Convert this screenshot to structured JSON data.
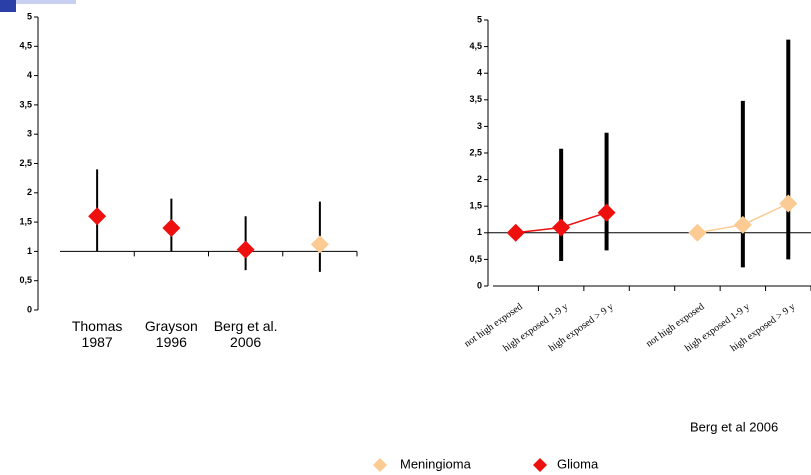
{
  "chart_data": [
    {
      "type": "errorbar",
      "categories": [
        "Thomas\n1987",
        "Grayson\n1996",
        "Berg et al.\n2006",
        null
      ],
      "ylim": [
        0,
        5
      ],
      "axis_at": 1,
      "lines": false,
      "yticks": [
        0,
        {
          "value": 0.5,
          "label": "0,5"
        },
        1,
        {
          "value": 1.5,
          "label": "1,5"
        },
        2,
        {
          "value": 2.5,
          "label": "2,5"
        },
        3,
        {
          "value": 3.5,
          "label": "3,5"
        },
        4,
        {
          "value": 4.5,
          "label": "4,5"
        },
        5
      ],
      "series": [
        {
          "name": "Meningioma",
          "color": "#fbcb93",
          "values": [
            null,
            null,
            null,
            1.12
          ],
          "lower": [
            null,
            null,
            null,
            0.65
          ],
          "upper": [
            null,
            null,
            null,
            1.85
          ]
        },
        {
          "name": "Glioma",
          "color": "#ee0f0f",
          "values": [
            1.6,
            1.4,
            1.03,
            null
          ],
          "lower": [
            1.0,
            1.0,
            0.68,
            null
          ],
          "upper": [
            2.4,
            1.9,
            1.6,
            null
          ]
        }
      ]
    },
    {
      "type": "errorbar",
      "categories": [
        "not high exposed",
        "high exposed 1-9 y",
        "high exposed > 9 y",
        null,
        "not high exposed",
        "high exposed 1-9 y",
        "high exposed > 9 y"
      ],
      "ylim": [
        0,
        5
      ],
      "axis_at": 0,
      "reference_line": 1,
      "lines": true,
      "annotation": "Berg  et al 2006",
      "yticks": [
        0,
        {
          "value": 0.5,
          "label": "0,5"
        },
        1,
        {
          "value": 1.5,
          "label": "1,5"
        },
        2,
        {
          "value": 2.5,
          "label": "2,5"
        },
        3,
        {
          "value": 3.5,
          "label": "3,5"
        },
        4,
        {
          "value": 4.5,
          "label": "4,5"
        },
        5
      ],
      "series": [
        {
          "name": "Meningioma",
          "color": "#fbcb93",
          "values": [
            null,
            null,
            null,
            null,
            1.0,
            1.15,
            1.55
          ],
          "lower": [
            null,
            null,
            null,
            null,
            null,
            0.35,
            0.5
          ],
          "upper": [
            null,
            null,
            null,
            null,
            null,
            3.48,
            4.63
          ]
        },
        {
          "name": "Glioma",
          "color": "#ee0f0f",
          "values": [
            1.0,
            1.1,
            1.38,
            null,
            null,
            null,
            null
          ],
          "lower": [
            null,
            0.47,
            0.67,
            null,
            null,
            null,
            null
          ],
          "upper": [
            null,
            2.58,
            2.88,
            null,
            null,
            null,
            null
          ]
        }
      ]
    }
  ]
}
